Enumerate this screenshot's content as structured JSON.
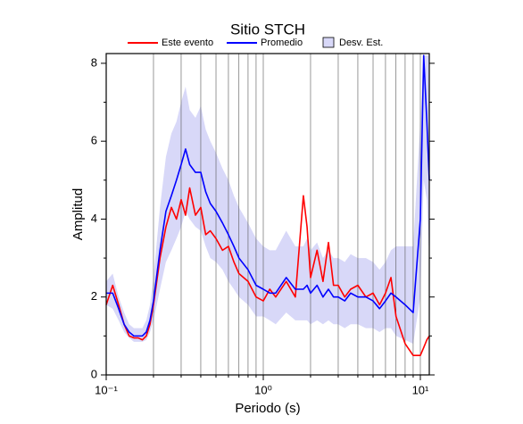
{
  "chart_data": {
    "type": "line",
    "title": "Sitio STCH",
    "x_label": "Periodo (s)",
    "y_label": "Amplitud",
    "log_x": true,
    "grid": true,
    "xlim": [
      0.1,
      11.4
    ],
    "ylim": [
      0,
      8.25
    ],
    "xticks": [
      {
        "value": 0.1,
        "label": "10⁻¹"
      },
      {
        "value": 1,
        "label": "10⁰"
      },
      {
        "value": 10,
        "label": "10¹"
      }
    ],
    "xminorticks": [
      0.2,
      0.3,
      0.4,
      0.5,
      0.6,
      0.7,
      0.8,
      0.9,
      2,
      3,
      4,
      5,
      6,
      7,
      8,
      9
    ],
    "yticks": [
      0,
      2,
      4,
      6,
      8
    ],
    "yminorticks": [
      1,
      3,
      5,
      7
    ],
    "x": [
      0.1,
      0.11,
      0.12,
      0.13,
      0.14,
      0.15,
      0.16,
      0.17,
      0.18,
      0.19,
      0.2,
      0.22,
      0.24,
      0.26,
      0.28,
      0.3,
      0.32,
      0.34,
      0.37,
      0.4,
      0.43,
      0.46,
      0.5,
      0.55,
      0.6,
      0.65,
      0.7,
      0.8,
      0.9,
      1.0,
      1.1,
      1.2,
      1.4,
      1.6,
      1.8,
      1.9,
      2.0,
      2.2,
      2.4,
      2.6,
      2.8,
      3.0,
      3.3,
      3.6,
      4.0,
      4.5,
      5,
      5.5,
      6,
      6.5,
      7,
      8,
      9,
      10,
      10.5,
      11,
      11.4
    ],
    "series": [
      {
        "name": "Este evento",
        "color": "#ff0000",
        "values": [
          1.8,
          2.3,
          1.8,
          1.3,
          1.0,
          0.95,
          0.95,
          0.9,
          1.0,
          1.3,
          1.8,
          3.0,
          3.8,
          4.3,
          4.0,
          4.5,
          4.1,
          4.8,
          4.1,
          4.3,
          3.6,
          3.7,
          3.5,
          3.2,
          3.3,
          2.9,
          2.6,
          2.4,
          2.0,
          1.9,
          2.2,
          2.0,
          2.4,
          2.0,
          4.6,
          3.8,
          2.5,
          3.2,
          2.4,
          3.4,
          2.3,
          2.3,
          2.0,
          2.2,
          2.3,
          2.0,
          2.1,
          1.8,
          2.1,
          2.5,
          1.5,
          0.8,
          0.5,
          0.5,
          0.7,
          0.9,
          1.0
        ]
      },
      {
        "name": "Promedio",
        "color": "#0000ff",
        "values": [
          2.1,
          2.1,
          1.7,
          1.3,
          1.1,
          1.0,
          1.0,
          1.0,
          1.1,
          1.4,
          1.9,
          3.2,
          4.2,
          4.6,
          5.0,
          5.4,
          5.8,
          5.4,
          5.2,
          5.2,
          4.7,
          4.4,
          4.2,
          3.9,
          3.6,
          3.3,
          3.0,
          2.7,
          2.3,
          2.2,
          2.1,
          2.1,
          2.5,
          2.2,
          2.2,
          2.3,
          2.1,
          2.3,
          2.0,
          2.2,
          2.0,
          2.0,
          1.9,
          2.1,
          2.0,
          2.0,
          1.9,
          1.7,
          1.9,
          2.1,
          2.0,
          1.8,
          1.6,
          4,
          8.2,
          6.5,
          5.0
        ]
      },
      {
        "name": "Desv. Est.",
        "color": "#d8d8f8",
        "upper": [
          2.4,
          2.6,
          2.0,
          1.6,
          1.3,
          1.2,
          1.2,
          1.2,
          1.4,
          1.8,
          2.5,
          4.3,
          5.6,
          6.2,
          6.5,
          7.0,
          7.4,
          6.8,
          6.6,
          6.9,
          6.3,
          6.0,
          5.7,
          5.3,
          5.0,
          4.6,
          4.3,
          3.9,
          3.5,
          3.3,
          3.2,
          3.2,
          3.7,
          3.3,
          3.3,
          3.5,
          3.2,
          3.4,
          3.0,
          3.2,
          3.0,
          3.0,
          2.9,
          3.1,
          3.0,
          3.0,
          2.9,
          2.7,
          2.9,
          3.2,
          3.3,
          3.3,
          3.3,
          6.5,
          8.2,
          8.2,
          8.2
        ],
        "lower": [
          1.8,
          1.7,
          1.4,
          1.1,
          0.95,
          0.85,
          0.85,
          0.85,
          0.9,
          1.1,
          1.4,
          2.2,
          2.9,
          3.2,
          3.5,
          3.8,
          4.2,
          4.0,
          3.8,
          3.7,
          3.3,
          3.0,
          2.9,
          2.7,
          2.4,
          2.2,
          2.0,
          1.8,
          1.5,
          1.5,
          1.4,
          1.3,
          1.6,
          1.4,
          1.4,
          1.4,
          1.3,
          1.4,
          1.3,
          1.4,
          1.3,
          1.3,
          1.2,
          1.3,
          1.3,
          1.2,
          1.2,
          1.1,
          1.2,
          1.2,
          1.0,
          0.9,
          0.8,
          2.0,
          5.0,
          4.5,
          3.0
        ]
      }
    ]
  }
}
